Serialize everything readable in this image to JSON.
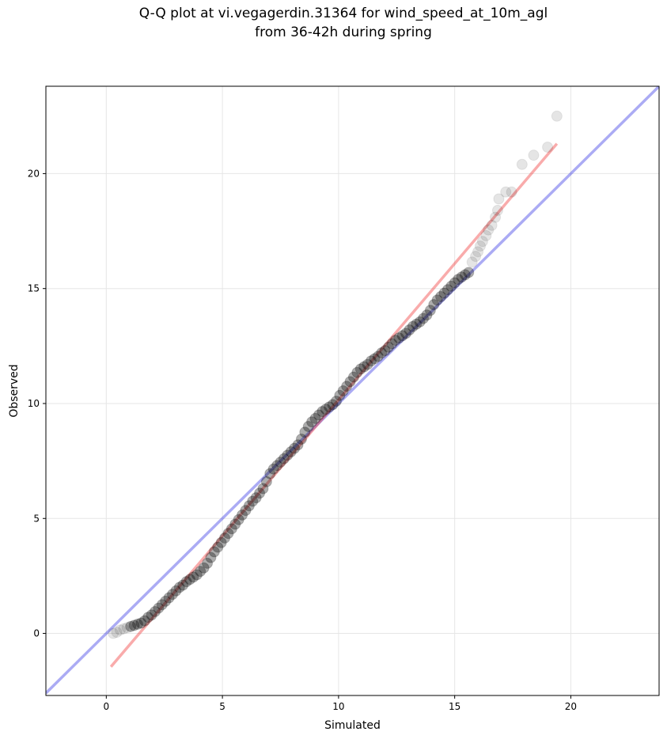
{
  "figure": {
    "title_line1": "Q-Q plot at vi.vegagerdin.31364 for wind_speed_at_10m_agl",
    "title_line2": "from 36-42h during spring"
  },
  "chart_data": {
    "type": "scatter",
    "title": "Q-Q plot at vi.vegagerdin.31364 for wind_speed_at_10m_agl from 36-42h during spring",
    "xlabel": "Simulated",
    "ylabel": "Observed",
    "xlim": [
      -2.6,
      23.8
    ],
    "ylim": [
      -2.7,
      23.8
    ],
    "xticks": [
      0,
      5,
      10,
      15,
      20
    ],
    "yticks": [
      0,
      5,
      10,
      15,
      20
    ],
    "grid": true,
    "colors": {
      "points": "#000000",
      "identity_line": "#0000dd",
      "fit_line": "#ee2222",
      "grid": "#e6e6e6",
      "frame": "#000000"
    },
    "series": [
      {
        "type": "line",
        "points": [
          [
            -2.6,
            -2.6
          ],
          [
            23.8,
            23.8
          ]
        ]
      },
      {
        "type": "line",
        "points": [
          [
            0.2,
            -1.45
          ],
          [
            19.4,
            21.3
          ]
        ]
      },
      {
        "type": "scatter",
        "points": [
          [
            0.3,
            0.0
          ],
          [
            0.45,
            0.05
          ],
          [
            0.6,
            0.15
          ],
          [
            0.75,
            0.2
          ],
          [
            0.9,
            0.25
          ],
          [
            1.05,
            0.3
          ],
          [
            1.2,
            0.35
          ],
          [
            1.35,
            0.4
          ],
          [
            1.5,
            0.45
          ],
          [
            1.65,
            0.55
          ],
          [
            1.8,
            0.7
          ],
          [
            1.95,
            0.8
          ],
          [
            2.1,
            0.95
          ],
          [
            2.25,
            1.1
          ],
          [
            2.4,
            1.25
          ],
          [
            2.55,
            1.4
          ],
          [
            2.7,
            1.55
          ],
          [
            2.85,
            1.7
          ],
          [
            3.0,
            1.85
          ],
          [
            3.15,
            2.0
          ],
          [
            3.3,
            2.1
          ],
          [
            3.45,
            2.25
          ],
          [
            3.6,
            2.35
          ],
          [
            3.75,
            2.45
          ],
          [
            3.9,
            2.55
          ],
          [
            4.05,
            2.7
          ],
          [
            4.2,
            2.85
          ],
          [
            4.35,
            3.05
          ],
          [
            4.5,
            3.3
          ],
          [
            4.65,
            3.55
          ],
          [
            4.8,
            3.75
          ],
          [
            4.95,
            3.95
          ],
          [
            5.1,
            4.15
          ],
          [
            5.25,
            4.35
          ],
          [
            5.4,
            4.55
          ],
          [
            5.55,
            4.75
          ],
          [
            5.7,
            4.95
          ],
          [
            5.85,
            5.15
          ],
          [
            6.0,
            5.35
          ],
          [
            6.15,
            5.55
          ],
          [
            6.3,
            5.75
          ],
          [
            6.45,
            5.9
          ],
          [
            6.6,
            6.1
          ],
          [
            6.75,
            6.3
          ],
          [
            6.9,
            6.6
          ],
          [
            7.05,
            6.95
          ],
          [
            7.2,
            7.15
          ],
          [
            7.35,
            7.3
          ],
          [
            7.5,
            7.45
          ],
          [
            7.65,
            7.6
          ],
          [
            7.8,
            7.75
          ],
          [
            7.95,
            7.9
          ],
          [
            8.1,
            8.05
          ],
          [
            8.25,
            8.2
          ],
          [
            8.4,
            8.45
          ],
          [
            8.55,
            8.75
          ],
          [
            8.7,
            9.0
          ],
          [
            8.85,
            9.2
          ],
          [
            9.0,
            9.35
          ],
          [
            9.15,
            9.5
          ],
          [
            9.3,
            9.65
          ],
          [
            9.45,
            9.75
          ],
          [
            9.6,
            9.85
          ],
          [
            9.75,
            9.95
          ],
          [
            9.9,
            10.1
          ],
          [
            10.05,
            10.35
          ],
          [
            10.2,
            10.55
          ],
          [
            10.35,
            10.75
          ],
          [
            10.5,
            10.95
          ],
          [
            10.65,
            11.15
          ],
          [
            10.8,
            11.35
          ],
          [
            10.95,
            11.5
          ],
          [
            11.1,
            11.6
          ],
          [
            11.25,
            11.7
          ],
          [
            11.4,
            11.85
          ],
          [
            11.55,
            11.95
          ],
          [
            11.7,
            12.05
          ],
          [
            11.85,
            12.2
          ],
          [
            12.0,
            12.3
          ],
          [
            12.15,
            12.45
          ],
          [
            12.3,
            12.6
          ],
          [
            12.45,
            12.75
          ],
          [
            12.6,
            12.85
          ],
          [
            12.75,
            12.95
          ],
          [
            12.9,
            13.05
          ],
          [
            13.05,
            13.2
          ],
          [
            13.2,
            13.35
          ],
          [
            13.35,
            13.45
          ],
          [
            13.5,
            13.55
          ],
          [
            13.65,
            13.7
          ],
          [
            13.8,
            13.85
          ],
          [
            13.95,
            14.05
          ],
          [
            14.1,
            14.3
          ],
          [
            14.25,
            14.5
          ],
          [
            14.4,
            14.65
          ],
          [
            14.55,
            14.8
          ],
          [
            14.7,
            14.95
          ],
          [
            14.85,
            15.1
          ],
          [
            15.0,
            15.25
          ],
          [
            15.15,
            15.4
          ],
          [
            15.3,
            15.5
          ],
          [
            15.45,
            15.6
          ],
          [
            15.6,
            15.7
          ],
          [
            15.75,
            16.15
          ],
          [
            15.9,
            16.4
          ],
          [
            16.0,
            16.6
          ],
          [
            16.1,
            16.85
          ],
          [
            16.2,
            17.05
          ],
          [
            16.35,
            17.3
          ],
          [
            16.45,
            17.55
          ],
          [
            16.6,
            17.75
          ],
          [
            16.75,
            18.1
          ],
          [
            16.85,
            18.4
          ],
          [
            16.9,
            18.9
          ],
          [
            17.2,
            19.2
          ],
          [
            17.45,
            19.2
          ],
          [
            17.9,
            20.4
          ],
          [
            18.4,
            20.8
          ],
          [
            19.0,
            21.15
          ],
          [
            19.4,
            22.5
          ]
        ]
      }
    ]
  }
}
